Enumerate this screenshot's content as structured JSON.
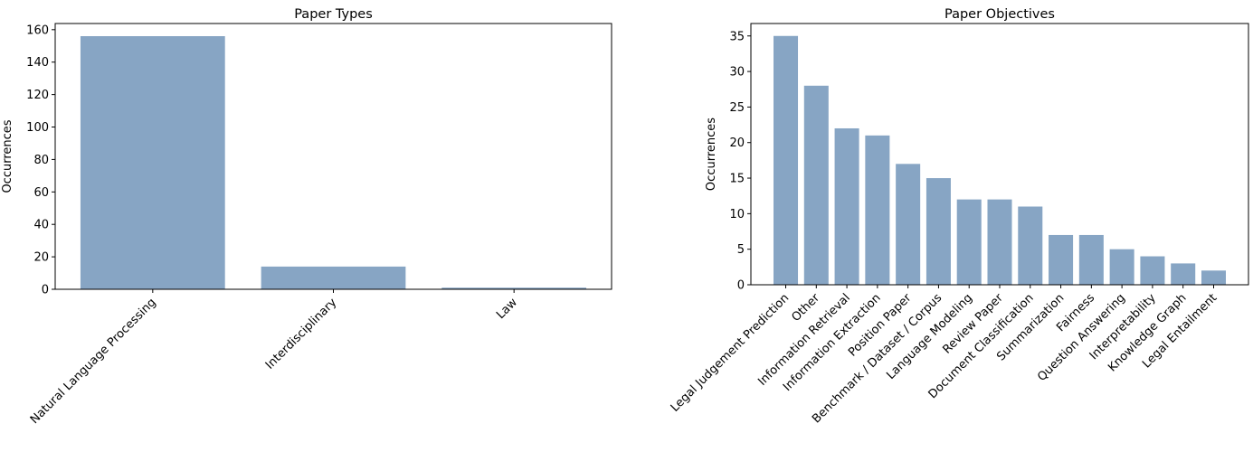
{
  "chart_data": [
    {
      "type": "bar",
      "title": "Paper Types",
      "xlabel": "",
      "ylabel": "Occurrences",
      "categories": [
        "Natural Language Processing",
        "Interdisciplinary",
        "Law"
      ],
      "values": [
        156,
        14,
        1
      ],
      "ylim": [
        0,
        163.8
      ],
      "yticks": [
        0,
        20,
        40,
        60,
        80,
        100,
        120,
        140,
        160
      ],
      "grid": false,
      "bar_color": "#87a5c4"
    },
    {
      "type": "bar",
      "title": "Paper Objectives",
      "xlabel": "",
      "ylabel": "Occurrences",
      "categories": [
        "Legal Judgement Prediction",
        "Other",
        "Information Retrieval",
        "Information Extraction",
        "Position Paper",
        "Benchmark / Dataset / Corpus",
        "Language Modeling",
        "Review Paper",
        "Document Classification",
        "Summarization",
        "Fairness",
        "Question Answering",
        "Interpretability",
        "Knowledge Graph",
        "Legal Entailment"
      ],
      "values": [
        35,
        28,
        22,
        21,
        17,
        15,
        12,
        12,
        11,
        7,
        7,
        5,
        4,
        3,
        2
      ],
      "ylim": [
        0,
        36.75
      ],
      "yticks": [
        0,
        5,
        10,
        15,
        20,
        25,
        30,
        35
      ],
      "grid": false,
      "bar_color": "#87a5c4"
    }
  ]
}
